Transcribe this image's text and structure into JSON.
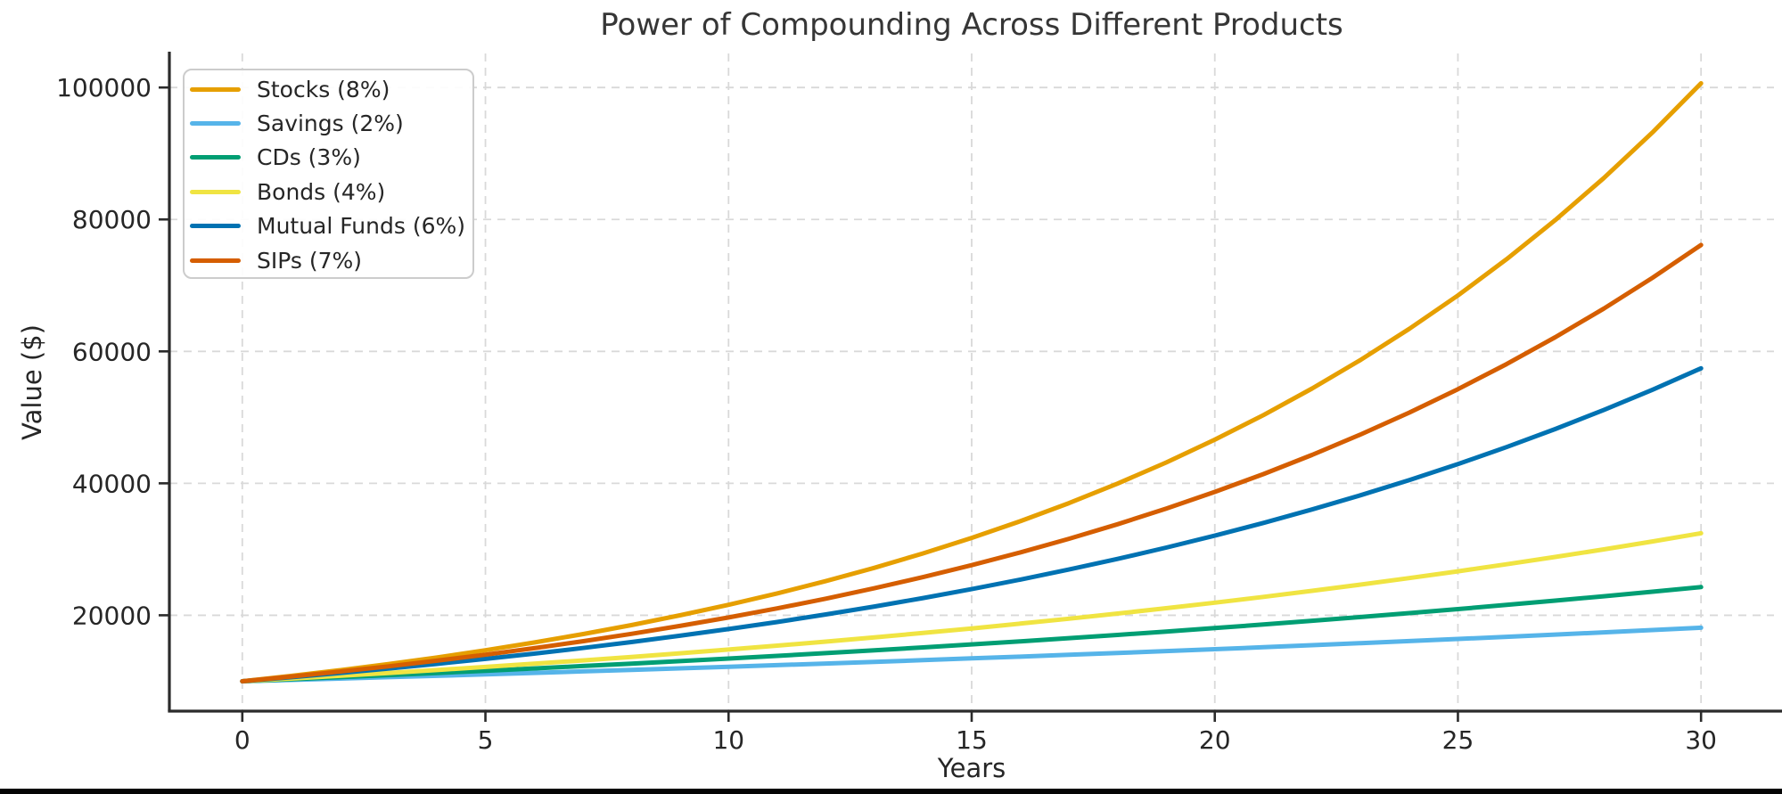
{
  "chart_data": {
    "type": "line",
    "title": "Power of Compounding Across Different Products",
    "xlabel": "Years",
    "ylabel": "Value ($)",
    "start_value": 10000,
    "x": [
      0,
      1,
      2,
      3,
      4,
      5,
      6,
      7,
      8,
      9,
      10,
      11,
      12,
      13,
      14,
      15,
      16,
      17,
      18,
      19,
      20,
      21,
      22,
      23,
      24,
      25,
      26,
      27,
      28,
      29,
      30
    ],
    "series": [
      {
        "name": "Stocks (8%)",
        "rate_percent": 8,
        "color": "#E69F00",
        "values": [
          10000,
          10800,
          11664,
          12597,
          13605,
          14693,
          15869,
          17138,
          18509,
          19990,
          21589,
          23316,
          25182,
          27196,
          29372,
          31722,
          34259,
          37000,
          39960,
          43157,
          46610,
          50338,
          54365,
          58715,
          63412,
          68485,
          73964,
          79881,
          86271,
          93173,
          100627
        ]
      },
      {
        "name": "Savings (2%)",
        "rate_percent": 2,
        "color": "#56B4E9",
        "values": [
          10000,
          10200,
          10404,
          10612,
          10824,
          11041,
          11262,
          11487,
          11717,
          11951,
          12190,
          12434,
          12682,
          12936,
          13195,
          13459,
          13728,
          14002,
          14282,
          14568,
          14859,
          15157,
          15460,
          15769,
          16084,
          16406,
          16734,
          17069,
          17410,
          17758,
          18114
        ]
      },
      {
        "name": "CDs (3%)",
        "rate_percent": 3,
        "color": "#009E73",
        "values": [
          10000,
          10300,
          10609,
          10927,
          11255,
          11593,
          11941,
          12299,
          12668,
          13048,
          13439,
          13842,
          14258,
          14685,
          15126,
          15580,
          16047,
          16528,
          17024,
          17535,
          18061,
          18603,
          19161,
          19736,
          20328,
          20938,
          21566,
          22213,
          22879,
          23566,
          24273
        ]
      },
      {
        "name": "Bonds (4%)",
        "rate_percent": 4,
        "color": "#F0E442",
        "values": [
          10000,
          10400,
          10816,
          11249,
          11699,
          12167,
          12653,
          13159,
          13686,
          14233,
          14802,
          15395,
          16010,
          16651,
          17317,
          18009,
          18730,
          19479,
          20258,
          21068,
          21911,
          22788,
          23699,
          24647,
          25633,
          26658,
          27725,
          28834,
          29987,
          31187,
          32434
        ]
      },
      {
        "name": "Mutual Funds (6%)",
        "rate_percent": 6,
        "color": "#0072B2",
        "values": [
          10000,
          10600,
          11236,
          11910,
          12625,
          13382,
          14185,
          15036,
          15938,
          16895,
          17908,
          18983,
          20122,
          21329,
          22609,
          23966,
          25404,
          26928,
          28543,
          30256,
          32071,
          33996,
          36035,
          38197,
          40489,
          42919,
          45494,
          48223,
          51117,
          54184,
          57435
        ]
      },
      {
        "name": "SIPs (7%)",
        "rate_percent": 7,
        "color": "#D55E00",
        "values": [
          10000,
          10700,
          11449,
          12250,
          13108,
          14026,
          15007,
          16058,
          17182,
          18385,
          19672,
          21049,
          22522,
          24098,
          25785,
          27590,
          29522,
          31588,
          33799,
          36165,
          38697,
          41406,
          44304,
          47405,
          50724,
          54274,
          58074,
          62139,
          66488,
          71143,
          76123
        ]
      }
    ],
    "x_ticks": [
      0,
      5,
      10,
      15,
      20,
      25,
      30
    ],
    "y_ticks": [
      20000,
      40000,
      60000,
      80000,
      100000
    ],
    "xlim": [
      -1.5,
      31.5
    ],
    "ylim": [
      5469,
      105158
    ],
    "grid": true,
    "legend_position": "upper left"
  }
}
